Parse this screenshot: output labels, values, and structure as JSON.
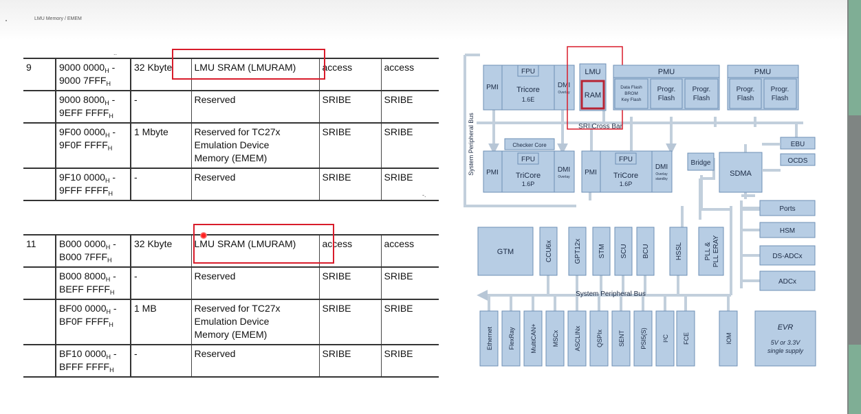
{
  "breadcrumb": "LMU Memory / EMEM",
  "table_top": {
    "segment": "9",
    "rows": [
      {
        "addr1": "9000 0000",
        "addr2": "9000 7FFF",
        "size": "32 Kbyte",
        "desc": [
          "LMU SRAM (LMURAM)"
        ],
        "c1": "access",
        "c2": "access"
      },
      {
        "addr1": "9000 8000",
        "addr2": "9EFF FFFF",
        "size": "-",
        "desc": [
          "Reserved"
        ],
        "c1": "SRIBE",
        "c2": "SRIBE"
      },
      {
        "addr1": "9F00 0000",
        "addr2": "9F0F FFFF",
        "size": "1 Mbyte",
        "desc": [
          "Reserved for TC27x",
          "Emulation Device",
          "Memory (EMEM)"
        ],
        "c1": "SRIBE",
        "c2": "SRIBE"
      },
      {
        "addr1": "9F10 0000",
        "addr2": "9FFF FFFF",
        "size": "-",
        "desc": [
          "Reserved"
        ],
        "c1": "SRIBE",
        "c2": "SRIBE"
      }
    ]
  },
  "table_bottom": {
    "segment": "11",
    "rows": [
      {
        "addr1": "B000 0000",
        "addr2": "B000 7FFF",
        "size": "32 Kbyte",
        "desc": [
          "LMU SRAM (LMURAM)"
        ],
        "c1": "access",
        "c2": "access"
      },
      {
        "addr1": "B000 8000",
        "addr2": "BEFF FFFF",
        "size": "-",
        "desc": [
          "Reserved"
        ],
        "c1": "SRIBE",
        "c2": "SRIBE"
      },
      {
        "addr1": "BF00 0000",
        "addr2": "BF0F FFFF",
        "size": "1 MB",
        "desc": [
          "Reserved for TC27x",
          "Emulation Device",
          "Memory (EMEM)"
        ],
        "c1": "SRIBE",
        "c2": "SRIBE"
      },
      {
        "addr1": "BF10 0000",
        "addr2": "BFFF FFFF",
        "size": "-",
        "desc": [
          "Reserved"
        ],
        "c1": "SRIBE",
        "c2": "SRIBE"
      }
    ]
  },
  "hex_suffix": "H",
  "diagram": {
    "spb_vertical": "System Peripheral Bus",
    "spb_horizontal": "System Peripheral Bus",
    "crossbar": "SRI Cross Bar",
    "cpu0": {
      "pmi": "PMI",
      "fpu": "FPU",
      "core": "Tricore",
      "ver": "1.6E",
      "dmi": "DMI",
      "dmi_sub": "Overlay"
    },
    "lmu": {
      "label": "LMU",
      "ram": "RAM"
    },
    "pmu0": {
      "title": "PMU",
      "dflash": [
        "Data Flash",
        "BROM",
        "Key Flash"
      ],
      "pf1": [
        "Progr.",
        "Flash"
      ],
      "pf2": [
        "Progr.",
        "Flash"
      ]
    },
    "pmu1": {
      "title": "PMU",
      "pf1": [
        "Progr.",
        "Flash"
      ],
      "pf2": [
        "Progr.",
        "Flash"
      ]
    },
    "cpu1": {
      "checker": "Checker Core",
      "pmi": "PMI",
      "fpu": "FPU",
      "core": "TriCore",
      "ver": "1.6P",
      "dmi": "DMI",
      "dmi_sub": "Overlay"
    },
    "cpu2": {
      "pmi": "PMI",
      "fpu": "FPU",
      "core": "TriCore",
      "ver": "1.6P",
      "dmi": "DMI",
      "dmi_sub": [
        "Overlay",
        "standby"
      ]
    },
    "bridge": "Bridge",
    "sdma": "SDMA",
    "ebu": "EBU",
    "ocds": "OCDS",
    "right_blocks": [
      "Ports",
      "HSM",
      "DS-ADCx",
      "ADCx"
    ],
    "gtm": "GTM",
    "vert_top": [
      "CCU6x",
      "GPT12x",
      "STM",
      "SCU",
      "BCU",
      "HSSL"
    ],
    "plls": [
      "PLL &",
      "PLL ERAY"
    ],
    "bottom": [
      "Ethernet",
      "FlexRay",
      "MultiCAN+",
      "MSCx",
      "ASCLINx",
      "QSPIx",
      "SENT",
      "PSI5(S)",
      "I²C",
      "FCE",
      "IOM"
    ],
    "evr": {
      "title": "EVR",
      "line1": "5V or 3.3V",
      "line2": "single supply"
    }
  }
}
